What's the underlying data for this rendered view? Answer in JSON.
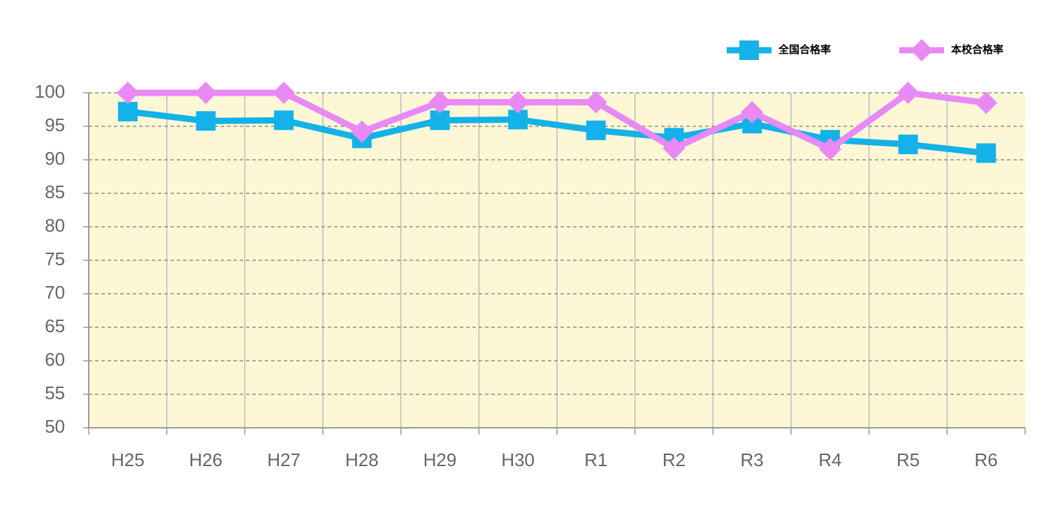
{
  "chart_data": {
    "type": "line",
    "categories": [
      "H25",
      "H26",
      "H27",
      "H28",
      "H29",
      "H30",
      "R1",
      "R2",
      "R3",
      "R4",
      "R5",
      "R6"
    ],
    "series": [
      {
        "name": "全国合格率",
        "color": "#13b2e8",
        "marker": "square",
        "values": [
          97.2,
          95.8,
          95.9,
          93.2,
          95.9,
          96.0,
          94.4,
          93.3,
          95.4,
          93.0,
          92.3,
          91.0
        ]
      },
      {
        "name": "本校合格率",
        "color": "#e889f5",
        "marker": "diamond",
        "values": [
          100,
          100,
          100,
          94.2,
          98.6,
          98.6,
          98.6,
          91.7,
          97.1,
          91.6,
          100,
          98.5
        ]
      }
    ],
    "ylim": [
      50,
      100
    ],
    "yticks": [
      50,
      55,
      60,
      65,
      70,
      75,
      80,
      85,
      90,
      95,
      100
    ],
    "grid": true,
    "legend": "top-right"
  }
}
